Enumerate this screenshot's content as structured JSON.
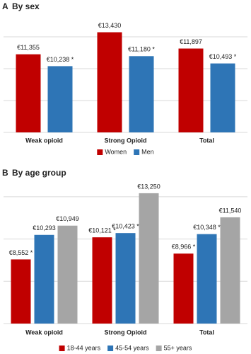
{
  "chart_data": [
    {
      "type": "bar",
      "panel": "A",
      "title": "By sex",
      "categories": [
        "Weak opioid",
        "Strong Opioid",
        "Total"
      ],
      "series": [
        {
          "name": "Women",
          "color": "#c00000",
          "values": [
            11355,
            13430,
            11897
          ],
          "value_labels": [
            "€11,355",
            "€13,430",
            "€11,897"
          ]
        },
        {
          "name": "Men",
          "color": "#2e75b6",
          "values": [
            10238,
            11180,
            10493
          ],
          "value_labels": [
            "€10,238 *",
            "€11,180 *",
            "€10,493 *"
          ]
        }
      ],
      "ylim": [
        4000,
        14000
      ],
      "yticks": [
        4000,
        7000,
        10000,
        13000
      ],
      "grid": true,
      "legend": "bottom"
    },
    {
      "type": "bar",
      "panel": "B",
      "title": "By age group",
      "categories": [
        "Weak opioid",
        "Strong Opioid",
        "Total"
      ],
      "series": [
        {
          "name": "18-44 years",
          "color": "#c00000",
          "values": [
            8552,
            10121,
            8966
          ],
          "value_labels": [
            "€8,552 *",
            "€10,121 *",
            "€8,966 *"
          ]
        },
        {
          "name": "45-54 years",
          "color": "#2e75b6",
          "values": [
            10293,
            10423,
            10348
          ],
          "value_labels": [
            "€10,293",
            "€10,423 *",
            "€10,348 *"
          ]
        },
        {
          "name": "55+ years",
          "color": "#a5a5a5",
          "values": [
            10949,
            13250,
            11540
          ],
          "value_labels": [
            "€10,949",
            "€13,250",
            "€11,540"
          ]
        }
      ],
      "ylim": [
        4000,
        14000
      ],
      "yticks": [
        4000,
        7000,
        10000,
        13000
      ],
      "grid": true,
      "legend": "bottom"
    }
  ]
}
